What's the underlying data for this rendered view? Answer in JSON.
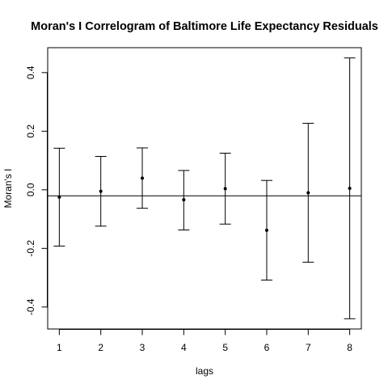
{
  "chart_data": {
    "type": "scatter",
    "title": "Moran's I Correlogram of Baltimore Life Expectancy Residuals",
    "xlabel": "lags",
    "ylabel": "Moran's I",
    "x_ticks": [
      "1",
      "2",
      "3",
      "4",
      "5",
      "6",
      "7",
      "8"
    ],
    "y_ticks": [
      "-0.4",
      "-0.2",
      "0.0",
      "0.2",
      "0.4"
    ],
    "xlim": [
      0.72,
      8.28
    ],
    "ylim": [
      -0.475,
      0.485
    ],
    "reference_line": -0.0204,
    "grid": false,
    "legend": "none",
    "series": [
      {
        "lags": [
          1,
          2,
          3,
          4,
          5,
          6,
          7,
          8
        ],
        "moran_i": [
          -0.025,
          -0.005,
          0.04,
          -0.034,
          0.004,
          -0.138,
          -0.01,
          0.005
        ],
        "upper": [
          0.142,
          0.114,
          0.143,
          0.066,
          0.125,
          0.032,
          0.227,
          0.45
        ],
        "lower": [
          -0.192,
          -0.124,
          -0.063,
          -0.137,
          -0.117,
          -0.308,
          -0.247,
          -0.44
        ]
      }
    ]
  }
}
